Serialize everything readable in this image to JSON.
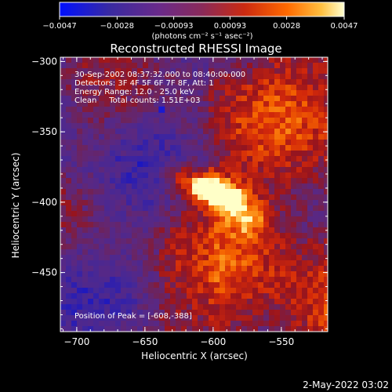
{
  "colorbar": {
    "ticks": [
      "-0.0047",
      "-0.0028",
      "-0.00093",
      "0.00093",
      "0.0028",
      "0.0047"
    ],
    "unit_label": "(photons cm⁻² s⁻¹ asec⁻²)"
  },
  "title": "Reconstructed RHESSI Image",
  "annotations": {
    "line1": "30-Sep-2002 08:37:32.000 to 08:40:00.000",
    "line2": "Detectors: 3F 4F 5F 6F 7F 8F, Att: 1",
    "line3": "Energy Range: 12.0 - 25.0 keV",
    "line4": "Clean     Total counts: 1.51E+03",
    "peak": "Position of Peak = [-608,-388]"
  },
  "footer": {
    "date": "2-May-2022 03:02"
  },
  "chart_data": {
    "type": "heatmap",
    "title": "Reconstructed RHESSI Image",
    "xlabel": "Heliocentric X (arcsec)",
    "ylabel": "Heliocentric Y (arcsec)",
    "xlim": [
      -712,
      -516
    ],
    "ylim": [
      -492,
      -297
    ],
    "x_ticks": [
      -700,
      -650,
      -600,
      -550
    ],
    "y_ticks": [
      -300,
      -350,
      -400,
      -450
    ],
    "colorbar_range": [
      -0.0047,
      0.0047
    ],
    "peak": {
      "x": -608,
      "y": -388
    },
    "sources": [
      {
        "x": -608,
        "y": -388,
        "intensity": 1.0
      },
      {
        "x": -590,
        "y": -396,
        "intensity": 0.75
      },
      {
        "x": -575,
        "y": -410,
        "intensity": 0.45
      },
      {
        "x": -628,
        "y": -380,
        "intensity": 0.4
      }
    ],
    "colors": {
      "low": "#0000cc",
      "mid": "#4a2a7a",
      "high": "#ffffc0"
    }
  }
}
